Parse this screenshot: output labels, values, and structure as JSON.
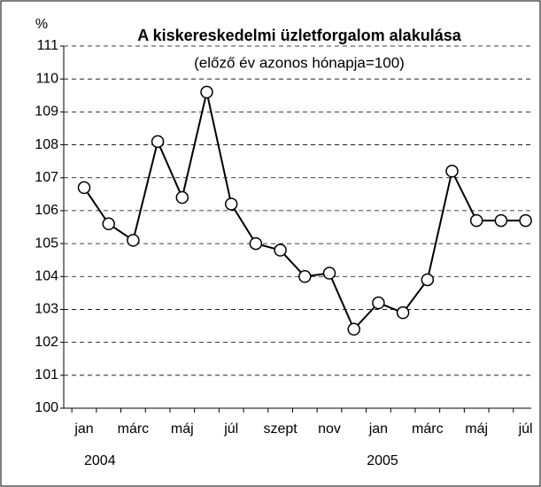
{
  "chart_data": {
    "type": "line",
    "title": "A kiskereskedelmi üzletforgalom alakulása",
    "subtitle": "(előző év azonos hónapja=100)",
    "y_unit": "%",
    "categories": [
      "jan",
      null,
      "márc",
      null,
      "máj",
      null,
      "júl",
      null,
      "szept",
      null,
      "nov",
      null,
      "jan",
      null,
      "márc",
      null,
      "máj",
      null,
      "júl"
    ],
    "years": [
      "2004",
      "2005"
    ],
    "series": [
      {
        "name": "A kiskereskedelmi üzletforgalom",
        "color": "#000000",
        "values": [
          106.7,
          105.6,
          105.1,
          108.1,
          106.4,
          109.6,
          106.2,
          105.0,
          104.8,
          104.0,
          104.1,
          102.4,
          103.2,
          102.9,
          103.9,
          107.2,
          105.7,
          105.7,
          105.7
        ]
      }
    ],
    "ylim": [
      100,
      111
    ],
    "yticks": [
      100,
      101,
      102,
      103,
      104,
      105,
      106,
      107,
      108,
      109,
      110,
      111
    ],
    "grid": true
  }
}
